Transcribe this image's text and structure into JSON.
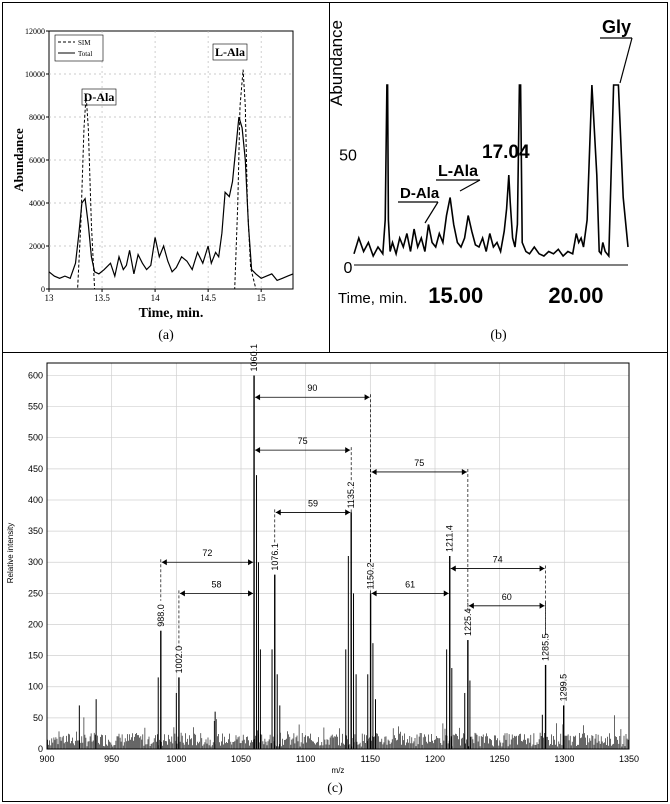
{
  "chart_data": [
    {
      "id": "a",
      "type": "line",
      "caption": "(a)",
      "xlabel": "Time, min.",
      "ylabel": "Abundance",
      "xlim": [
        13,
        15.3
      ],
      "ylim": [
        0,
        12000
      ],
      "x_ticks": [
        13,
        13.5,
        14,
        14.5,
        15
      ],
      "x_tick_labels": [
        "13",
        "13.5",
        "14",
        "14.5",
        "15"
      ],
      "y_ticks": [
        0,
        2000,
        4000,
        6000,
        8000,
        10000,
        12000
      ],
      "y_tick_labels": [
        "0",
        "2000",
        "4000",
        "6000",
        "8000",
        "10000",
        "12000"
      ],
      "legend": "top-left",
      "series": [
        {
          "name": "SIM",
          "style": "dashed",
          "x": [
            13.0,
            13.2,
            13.27,
            13.3,
            13.33,
            13.35,
            13.37,
            13.4,
            13.43,
            13.5,
            14.7,
            14.75,
            14.78,
            14.8,
            14.83,
            14.85,
            14.87,
            14.9,
            14.95,
            15.3
          ],
          "y": [
            0,
            0,
            0,
            3000,
            7500,
            9000,
            7500,
            3000,
            0,
            0,
            0,
            0,
            4000,
            8500,
            10200,
            8500,
            4000,
            1000,
            0,
            0
          ]
        },
        {
          "name": "Total",
          "style": "solid",
          "x": [
            13.0,
            13.05,
            13.1,
            13.15,
            13.2,
            13.25,
            13.28,
            13.31,
            13.34,
            13.37,
            13.4,
            13.43,
            13.47,
            13.52,
            13.58,
            13.62,
            13.66,
            13.7,
            13.73,
            13.76,
            13.8,
            13.84,
            13.88,
            13.92,
            13.96,
            14.0,
            14.04,
            14.08,
            14.12,
            14.16,
            14.2,
            14.25,
            14.3,
            14.35,
            14.4,
            14.45,
            14.5,
            14.53,
            14.57,
            14.6,
            14.63,
            14.66,
            14.7,
            14.73,
            14.76,
            14.79,
            14.82,
            14.85,
            14.88,
            14.91,
            14.95,
            15.0,
            15.05,
            15.1,
            15.15,
            15.2,
            15.25,
            15.3
          ],
          "y": [
            800,
            600,
            500,
            600,
            500,
            1200,
            2500,
            4000,
            4200,
            3000,
            1500,
            800,
            700,
            900,
            1200,
            600,
            1500,
            900,
            1100,
            1800,
            700,
            1600,
            1200,
            900,
            1100,
            2400,
            1500,
            2000,
            1300,
            800,
            1000,
            1500,
            1300,
            900,
            1700,
            1200,
            2000,
            1200,
            1700,
            1500,
            2600,
            4500,
            4300,
            5000,
            6500,
            8000,
            7500,
            6000,
            3000,
            900,
            700,
            500,
            600,
            700,
            400,
            500,
            600,
            700
          ]
        }
      ],
      "annotations": [
        {
          "text": "D-Ala",
          "x": 13.35,
          "y": 9000
        },
        {
          "text": "L-Ala",
          "x": 14.83,
          "y": 10200
        }
      ]
    },
    {
      "id": "b",
      "type": "line",
      "caption": "(b)",
      "xlabel": "Time, min.",
      "ylabel": "Abundance",
      "xlim": [
        10.6,
        22.0
      ],
      "ylim": [
        0,
        80
      ],
      "x_ticks": [
        15,
        20
      ],
      "x_tick_labels": [
        "15.00",
        "20.00"
      ],
      "y_ticks": [
        0,
        50
      ],
      "y_tick_labels": [
        "0",
        "50"
      ],
      "series": [
        {
          "name": "",
          "x": [
            10.6,
            10.8,
            11.0,
            11.2,
            11.4,
            11.6,
            11.8,
            11.9,
            11.97,
            12.0,
            12.03,
            12.1,
            12.2,
            12.35,
            12.5,
            12.65,
            12.8,
            12.95,
            13.1,
            13.25,
            13.4,
            13.55,
            13.7,
            13.85,
            14.0,
            14.15,
            14.3,
            14.45,
            14.6,
            14.75,
            14.9,
            15.05,
            15.2,
            15.35,
            15.5,
            15.65,
            15.8,
            15.95,
            16.1,
            16.25,
            16.4,
            16.55,
            16.7,
            16.85,
            16.95,
            17.04,
            17.1,
            17.2,
            17.3,
            17.4,
            17.48,
            17.53,
            17.6,
            17.75,
            17.9,
            18.1,
            18.3,
            18.5,
            18.7,
            18.9,
            19.1,
            19.3,
            19.5,
            19.7,
            19.85,
            19.95,
            20.05,
            20.15,
            20.3,
            20.5,
            20.7,
            20.8,
            20.88,
            20.95,
            21.05,
            21.2,
            21.4,
            21.6,
            21.8,
            22.0
          ],
          "y": [
            5,
            12,
            6,
            10,
            4,
            8,
            5,
            20,
            80,
            80,
            20,
            6,
            10,
            5,
            12,
            8,
            14,
            6,
            16,
            8,
            12,
            6,
            18,
            10,
            8,
            14,
            10,
            22,
            30,
            18,
            10,
            8,
            12,
            22,
            15,
            9,
            8,
            12,
            6,
            14,
            8,
            10,
            6,
            15,
            25,
            40,
            28,
            12,
            8,
            18,
            80,
            80,
            10,
            6,
            5,
            8,
            5,
            4,
            6,
            5,
            7,
            4,
            6,
            5,
            14,
            10,
            12,
            8,
            20,
            80,
            40,
            6,
            5,
            10,
            6,
            4,
            80,
            80,
            30,
            8
          ]
        }
      ],
      "annotations": [
        {
          "text": "D-Ala",
          "x": 13.5
        },
        {
          "text": "L-Ala",
          "x": 14.6
        },
        {
          "text": "17.04",
          "x": 17.04
        },
        {
          "text": "Gly",
          "x": 21.4
        }
      ]
    },
    {
      "id": "c",
      "type": "bar",
      "caption": "(c)",
      "xlabel": "m/z",
      "ylabel": "Relative intensity",
      "xlim": [
        900,
        1350
      ],
      "ylim": [
        0,
        620
      ],
      "x_ticks": [
        900,
        950,
        1000,
        1050,
        1100,
        1150,
        1200,
        1250,
        1300,
        1350
      ],
      "x_tick_labels": [
        "900",
        "950",
        "1000",
        "1050",
        "1100",
        "1150",
        "1200",
        "1250",
        "1300",
        "1350"
      ],
      "y_ticks": [
        0,
        50,
        100,
        150,
        200,
        250,
        300,
        350,
        400,
        450,
        500,
        550,
        600
      ],
      "y_tick_labels": [
        "0",
        "50",
        "100",
        "150",
        "200",
        "250",
        "300",
        "350",
        "400",
        "450",
        "500",
        "550",
        "600"
      ],
      "grid": true,
      "peaks": [
        {
          "mz": 988.0,
          "intensity": 190,
          "label": "988.0"
        },
        {
          "mz": 1002.0,
          "intensity": 115,
          "label": "1002.0"
        },
        {
          "mz": 1060.1,
          "intensity": 600,
          "label": "1060.1"
        },
        {
          "mz": 1076.1,
          "intensity": 280,
          "label": "1076.1"
        },
        {
          "mz": 1135.2,
          "intensity": 380,
          "label": "1135.2"
        },
        {
          "mz": 1150.2,
          "intensity": 250,
          "label": "1150.2"
        },
        {
          "mz": 1211.4,
          "intensity": 310,
          "label": "1211.4"
        },
        {
          "mz": 1225.4,
          "intensity": 175,
          "label": "1225.4"
        },
        {
          "mz": 1285.5,
          "intensity": 135,
          "label": "1285.5"
        },
        {
          "mz": 1299.5,
          "intensity": 70,
          "label": "1299.5"
        }
      ],
      "minor_peaks": [
        {
          "mz": 986.0,
          "intensity": 115
        },
        {
          "mz": 1000.0,
          "intensity": 90
        },
        {
          "mz": 1062.0,
          "intensity": 440
        },
        {
          "mz": 1063.5,
          "intensity": 300
        },
        {
          "mz": 1065.0,
          "intensity": 160
        },
        {
          "mz": 1074.0,
          "intensity": 160
        },
        {
          "mz": 1078.0,
          "intensity": 120
        },
        {
          "mz": 1080.0,
          "intensity": 70
        },
        {
          "mz": 1131.0,
          "intensity": 160
        },
        {
          "mz": 1133.0,
          "intensity": 310
        },
        {
          "mz": 1137.0,
          "intensity": 250
        },
        {
          "mz": 1139.0,
          "intensity": 120
        },
        {
          "mz": 1148.0,
          "intensity": 120
        },
        {
          "mz": 1152.0,
          "intensity": 170
        },
        {
          "mz": 1154.0,
          "intensity": 80
        },
        {
          "mz": 1209.0,
          "intensity": 160
        },
        {
          "mz": 1213.0,
          "intensity": 130
        },
        {
          "mz": 1223.0,
          "intensity": 90
        },
        {
          "mz": 1227.0,
          "intensity": 110
        },
        {
          "mz": 1283.0,
          "intensity": 55
        },
        {
          "mz": 938.0,
          "intensity": 80
        },
        {
          "mz": 925.0,
          "intensity": 70
        },
        {
          "mz": 1030.0,
          "intensity": 60
        }
      ],
      "intervals": [
        {
          "label": "72",
          "from": 988.0,
          "to": 1060.1,
          "y": 300
        },
        {
          "label": "58",
          "from": 1002.0,
          "to": 1060.1,
          "y": 250
        },
        {
          "label": "90",
          "from": 1060.1,
          "to": 1150.2,
          "y": 565
        },
        {
          "label": "75",
          "from": 1060.1,
          "to": 1135.2,
          "y": 480
        },
        {
          "label": "59",
          "from": 1076.1,
          "to": 1135.2,
          "y": 380
        },
        {
          "label": "75",
          "from": 1150.2,
          "to": 1225.4,
          "y": 445
        },
        {
          "label": "61",
          "from": 1150.2,
          "to": 1211.4,
          "y": 250
        },
        {
          "label": "74",
          "from": 1211.4,
          "to": 1285.5,
          "y": 290
        },
        {
          "label": "60",
          "from": 1225.4,
          "to": 1285.5,
          "y": 230
        }
      ]
    }
  ]
}
